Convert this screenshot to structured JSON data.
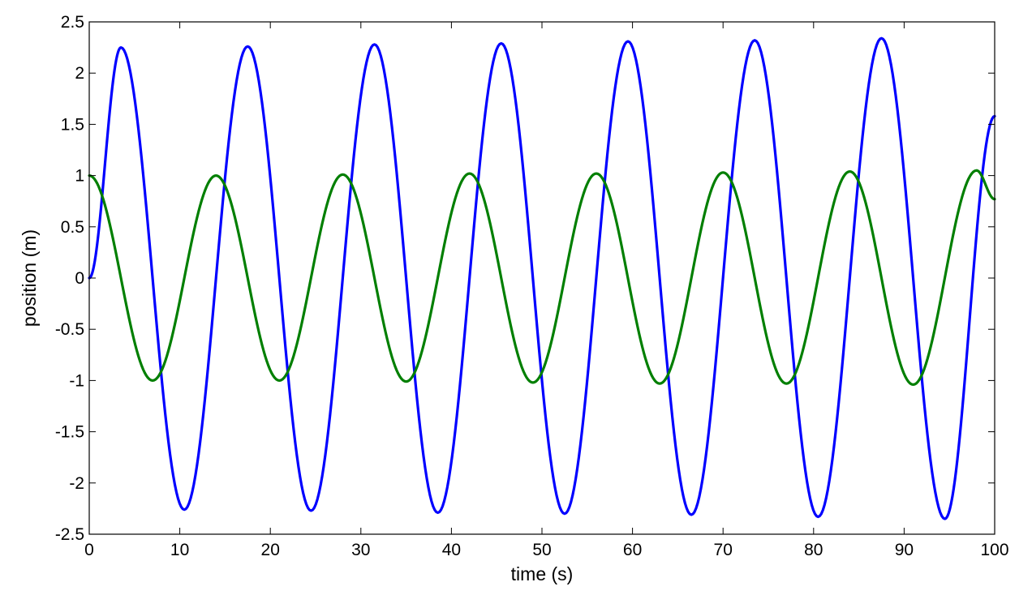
{
  "chart_data": {
    "type": "line",
    "title": "",
    "xlabel": "time (s)",
    "ylabel": "position (m)",
    "xlim": [
      0,
      100
    ],
    "ylim": [
      -2.5,
      2.5
    ],
    "x_ticks": [
      "0",
      "10",
      "20",
      "30",
      "40",
      "50",
      "60",
      "70",
      "80",
      "90",
      "100"
    ],
    "y_ticks": [
      "2.5",
      "2",
      "1.5",
      "1",
      "0.5",
      "0",
      "-0.5",
      "-1",
      "-1.5",
      "-2",
      "-2.5"
    ],
    "grid": false,
    "legend": "none",
    "series": [
      {
        "color": "#0000ff",
        "x": [
          0,
          3.5,
          10.5,
          17.5,
          24.5,
          31.5,
          38.5,
          45.5,
          52.5,
          59.5,
          66.5,
          73.5,
          80.5,
          87.5,
          94.5,
          100
        ],
        "y": [
          0,
          2.25,
          -2.26,
          2.26,
          -2.27,
          2.28,
          -2.29,
          2.29,
          -2.3,
          2.31,
          -2.31,
          2.32,
          -2.33,
          2.34,
          -2.35,
          1.58
        ]
      },
      {
        "color": "#007f00",
        "x": [
          0,
          7,
          14,
          21,
          28,
          35,
          42,
          49,
          56,
          63,
          70,
          77,
          84,
          91,
          98,
          100
        ],
        "y": [
          1.0,
          -1.0,
          1.0,
          -1.0,
          1.01,
          -1.01,
          1.02,
          -1.02,
          1.02,
          -1.03,
          1.03,
          -1.03,
          1.04,
          -1.04,
          1.05,
          0.77
        ]
      }
    ]
  }
}
